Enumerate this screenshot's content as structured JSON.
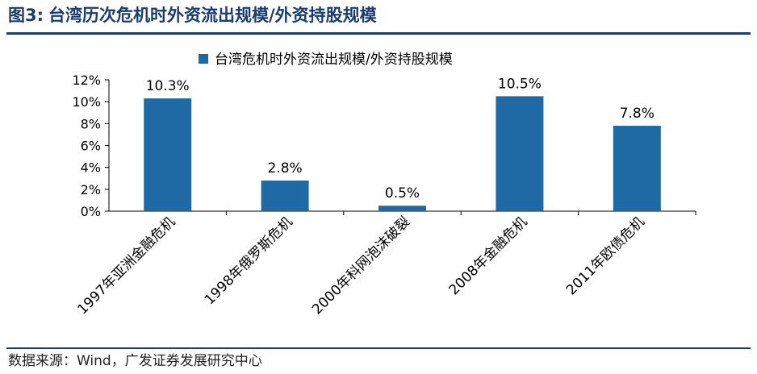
{
  "figure": {
    "number": "图3:",
    "title": "台湾历次危机时外资流出规模/外资持股规模"
  },
  "source_note": "数据来源：Wind，广发证券发展研究中心",
  "chart_data": {
    "type": "bar",
    "title": "",
    "xlabel": "",
    "ylabel": "",
    "categories": [
      "1997年亚洲金融危机",
      "1998年俄罗斯危机",
      "2000年科网泡沫破裂",
      "2008年金融危机",
      "2011年欧债危机"
    ],
    "series": [
      {
        "name": "台湾危机时外资流出规模/外资持股规模",
        "values": [
          10.3,
          2.8,
          0.5,
          10.5,
          7.8
        ],
        "labels": [
          "10.3%",
          "2.8%",
          "0.5%",
          "10.5%",
          "7.8%"
        ],
        "color": "#1f6aa5"
      }
    ],
    "ylim": [
      0,
      12
    ],
    "yticks": [
      0,
      2,
      4,
      6,
      8,
      10,
      12
    ],
    "ytick_labels": [
      "0%",
      "2%",
      "4%",
      "6%",
      "8%",
      "10%",
      "12%"
    ],
    "legend_position": "top-center",
    "grid": false
  }
}
